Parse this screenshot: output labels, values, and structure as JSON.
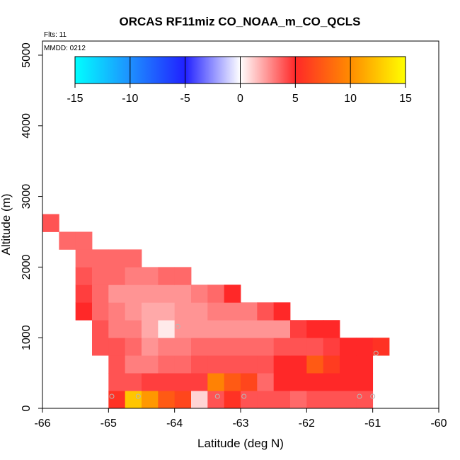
{
  "chart_data": {
    "type": "heatmap",
    "title": "ORCAS RF11miz CO_NOAA_m_CO_QCLS",
    "xlabel": "Latitude (deg N)",
    "ylabel": "Altitude (m)",
    "xlim": [
      -66,
      -60
    ],
    "ylim": [
      0,
      5200
    ],
    "x_ticks": [
      "-66",
      "-65",
      "-64",
      "-63",
      "-62",
      "-61",
      "-60"
    ],
    "y_ticks": [
      "0",
      "1000",
      "2000",
      "3000",
      "4000",
      "5000"
    ],
    "annotations": {
      "flights": "Flts: 11",
      "date": "MMDD: 0212"
    },
    "colorbar": {
      "min": -15,
      "max": 15,
      "tick_labels": [
        "-15",
        "-10",
        "-5",
        "0",
        "5",
        "10",
        "15"
      ]
    },
    "cell_size": {
      "lat": 0.25,
      "alt": 250
    },
    "rows": [
      {
        "alt": 0,
        "lat0": -65.0,
        "values": [
          5.5,
          12.5,
          10.5,
          7.5,
          6.5,
          1.0,
          4.0,
          5.5,
          4.0,
          4.0,
          4.0,
          3.5,
          4.0,
          4.0,
          4.0,
          4.0
        ]
      },
      {
        "alt": 250,
        "lat0": -65.0,
        "values": [
          4.0,
          4.0,
          4.5,
          4.5,
          4.5,
          4.5,
          9.5,
          7.5,
          6.5,
          3.5,
          5.0,
          5.0,
          5.0,
          5.0,
          5.0,
          5.0
        ]
      },
      {
        "alt": 500,
        "lat0": -65.0,
        "values": [
          4.0,
          3.0,
          3.0,
          3.5,
          3.5,
          4.0,
          4.0,
          4.0,
          4.0,
          4.0,
          5.0,
          5.0,
          7.5,
          6.0,
          5.0,
          5.0
        ]
      },
      {
        "alt": 750,
        "lat0": -65.25,
        "values": [
          4.0,
          4.0,
          3.5,
          2.5,
          3.0,
          3.0,
          3.5,
          3.5,
          3.5,
          3.5,
          3.5,
          4.0,
          4.0,
          4.0,
          4.5,
          5.0,
          5.0,
          5.5
        ]
      },
      {
        "alt": 1000,
        "lat0": -65.25,
        "values": [
          4.0,
          3.0,
          3.0,
          2.0,
          0.5,
          2.5,
          2.5,
          2.5,
          2.5,
          2.5,
          2.5,
          2.5,
          4.5,
          5.0,
          5.0
        ]
      },
      {
        "alt": 1250,
        "lat0": -65.5,
        "values": [
          5.0,
          3.5,
          3.0,
          2.5,
          2.0,
          2.0,
          2.5,
          2.5,
          3.0,
          3.0,
          3.0,
          4.0,
          5.0
        ]
      },
      {
        "alt": 1500,
        "lat0": -65.5,
        "values": [
          4.5,
          3.5,
          2.5,
          2.5,
          2.5,
          2.5,
          2.5,
          3.0,
          3.5,
          5.0
        ]
      },
      {
        "alt": 1750,
        "lat0": -65.5,
        "values": [
          4.0,
          3.5,
          3.5,
          3.0,
          3.0,
          3.5,
          3.5
        ]
      },
      {
        "alt": 2000,
        "lat0": -65.5,
        "values": [
          3.5,
          3.5,
          3.5,
          3.5
        ]
      },
      {
        "alt": 2250,
        "lat0": -65.75,
        "values": [
          3.5,
          3.5
        ]
      },
      {
        "alt": 2500,
        "lat0": -66.0,
        "values": [
          4.0
        ]
      }
    ],
    "sample_points": [
      {
        "lat": -64.95,
        "alt": 170
      },
      {
        "lat": -64.55,
        "alt": 170
      },
      {
        "lat": -63.35,
        "alt": 170
      },
      {
        "lat": -62.95,
        "alt": 170
      },
      {
        "lat": -61.2,
        "alt": 170
      },
      {
        "lat": -61.0,
        "alt": 170
      },
      {
        "lat": -63.95,
        "alt": 1160
      },
      {
        "lat": -60.95,
        "alt": 780
      }
    ]
  }
}
